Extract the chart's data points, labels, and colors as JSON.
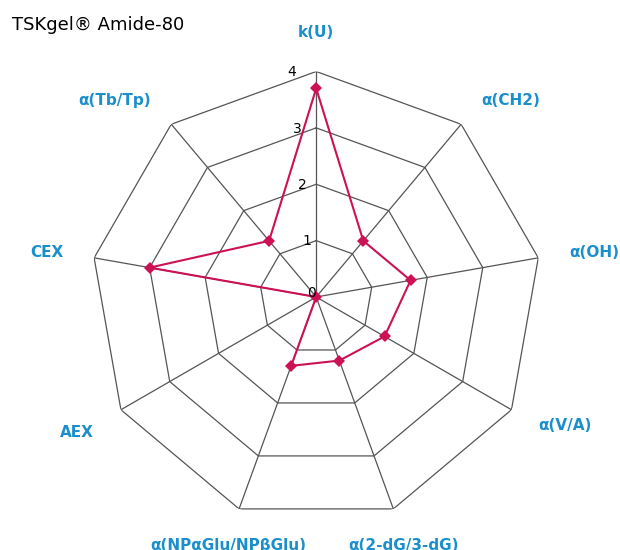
{
  "title": "TSKgel® Amide-80",
  "labels": [
    "k(U)",
    "α(CH2)",
    "α(OH)",
    "α(V/A)",
    "α(2-dG/3-dG)",
    "α(NPαGlu/NPβGlu)",
    "AEX",
    "CEX",
    "α(Tb/Tp)"
  ],
  "values": [
    3.7,
    1.3,
    1.7,
    1.4,
    1.2,
    1.3,
    0.0,
    3.0,
    1.3
  ],
  "max_val": 4,
  "num_levels": 4,
  "label_color": "#1B8FCC",
  "line_color": "#CC1155",
  "marker_color": "#CC1155",
  "grid_color": "#555555",
  "bg_color": "#ffffff",
  "title_fontsize": 13,
  "label_fontsize": 11,
  "tick_fontsize": 10
}
